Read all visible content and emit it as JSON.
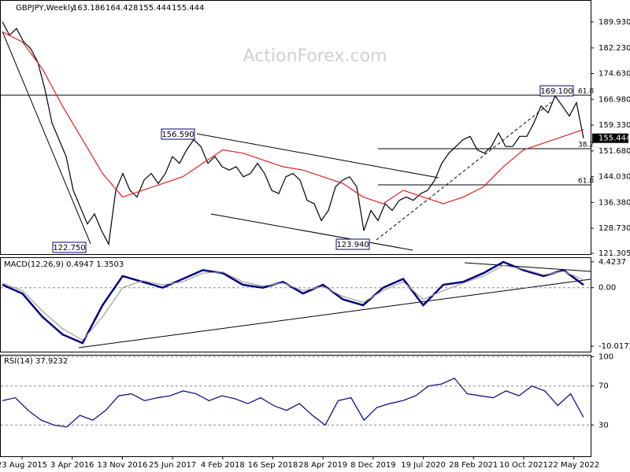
{
  "header": {
    "title": "GBPJPY,Weekly",
    "ohlc": [
      163.186,
      164.428,
      155.444,
      155.444
    ],
    "watermark": "ActionForex.com"
  },
  "chart_data": [
    {
      "type": "line",
      "ylim": [
        121.07,
        196.21
      ],
      "yticks": [
        {
          "value": 189.93,
          "label": "189.930"
        },
        {
          "value": 182.23,
          "label": "182.230"
        },
        {
          "value": 174.63,
          "label": "174.630"
        },
        {
          "value": 166.98,
          "label": "166.980"
        },
        {
          "value": 159.33,
          "label": "159.330"
        },
        {
          "value": 151.68,
          "label": "151.680"
        },
        {
          "value": 144.03,
          "label": "144.030"
        },
        {
          "value": 136.38,
          "label": "136.380"
        },
        {
          "value": 128.73,
          "label": "128.730"
        },
        {
          "value": 121.305,
          "label": "121.305"
        }
      ],
      "last_price": {
        "value": 155.444,
        "label": "155.444"
      },
      "annotations": [
        "156.590",
        "122.750",
        "123.940",
        "169.100",
        "61.8",
        "38.2",
        "61.8"
      ],
      "series": [
        {
          "name": "GBPJPY",
          "color": "#000000",
          "values": [
            190,
            186,
            188,
            184,
            182,
            178,
            170,
            160,
            155,
            150,
            140,
            135,
            130,
            133,
            128,
            124,
            140,
            145,
            140,
            138,
            143,
            145,
            142,
            145,
            150,
            148,
            152,
            155,
            153,
            148,
            150,
            147,
            146,
            147,
            144,
            145,
            148,
            145,
            140,
            139,
            144,
            145,
            143,
            137,
            136,
            131,
            134,
            141,
            143,
            144,
            141,
            128,
            134,
            131,
            136,
            134,
            137,
            138,
            137,
            139,
            140,
            143,
            148,
            151,
            153,
            155,
            156,
            152,
            151,
            153,
            157,
            153,
            153,
            156,
            156,
            160,
            165,
            163,
            168,
            165,
            162,
            166,
            155.444
          ]
        },
        {
          "name": "MA",
          "color": "#e02020",
          "values": [
            187,
            184,
            176,
            165,
            155,
            145,
            138,
            140,
            142,
            144,
            148,
            152,
            151,
            149,
            147,
            146,
            144,
            142,
            138,
            136,
            140,
            138,
            136,
            138,
            141,
            147,
            152,
            154,
            156,
            158
          ]
        }
      ]
    },
    {
      "type": "line",
      "label": "MACD(12,26,9) 0.4947 1.3503",
      "ylim": [
        -10.95,
        5.08
      ],
      "yticks": [
        4.4237,
        {
          "value": 0,
          "label": "0.00"
        },
        -10.0172
      ],
      "series": [
        {
          "name": "MACD",
          "color": "#000080",
          "values": [
            0.5,
            -1,
            -5,
            -8,
            -9.5,
            -3,
            2,
            1,
            0,
            1.5,
            3,
            2.5,
            0.5,
            0,
            1,
            -1,
            0.5,
            -2,
            -3,
            0,
            1.5,
            -3,
            0.5,
            1,
            2.5,
            4.4,
            3,
            2,
            3,
            0.49
          ]
        },
        {
          "name": "Signal",
          "color": "#a0a0a0",
          "values": [
            0.8,
            -0.5,
            -4,
            -7,
            -9,
            -5,
            0,
            1.2,
            0.5,
            1,
            2.5,
            2.7,
            1,
            0.3,
            0.8,
            -0.5,
            0.2,
            -1.5,
            -2.5,
            -0.5,
            1,
            -2,
            -0.5,
            0.8,
            2,
            3.8,
            3.2,
            2.2,
            2.8,
            1.35
          ]
        }
      ]
    },
    {
      "type": "line",
      "label": "RSI(14) 37.9232",
      "ylim": [
        -2,
        101.2
      ],
      "yticks": [
        100,
        70,
        30
      ],
      "xticks": [
        "23 Aug 2015",
        "3 Apr 2016",
        "13 Nov 2016",
        "25 Jun 2017",
        "4 Feb 2018",
        "16 Sep 2018",
        "28 Apr 2019",
        "8 Dec 2019",
        "19 Jul 2020",
        "28 Feb 2021",
        "10 Oct 2021",
        "22 May 2022"
      ],
      "series": [
        {
          "name": "RSI",
          "color": "#000080",
          "values": [
            55,
            58,
            45,
            35,
            30,
            28,
            40,
            35,
            45,
            60,
            62,
            55,
            58,
            60,
            65,
            62,
            55,
            60,
            57,
            52,
            58,
            50,
            45,
            52,
            40,
            30,
            55,
            58,
            35,
            48,
            52,
            55,
            60,
            70,
            72,
            78,
            62,
            60,
            58,
            65,
            60,
            70,
            65,
            50,
            62,
            37.9232
          ]
        }
      ]
    }
  ]
}
